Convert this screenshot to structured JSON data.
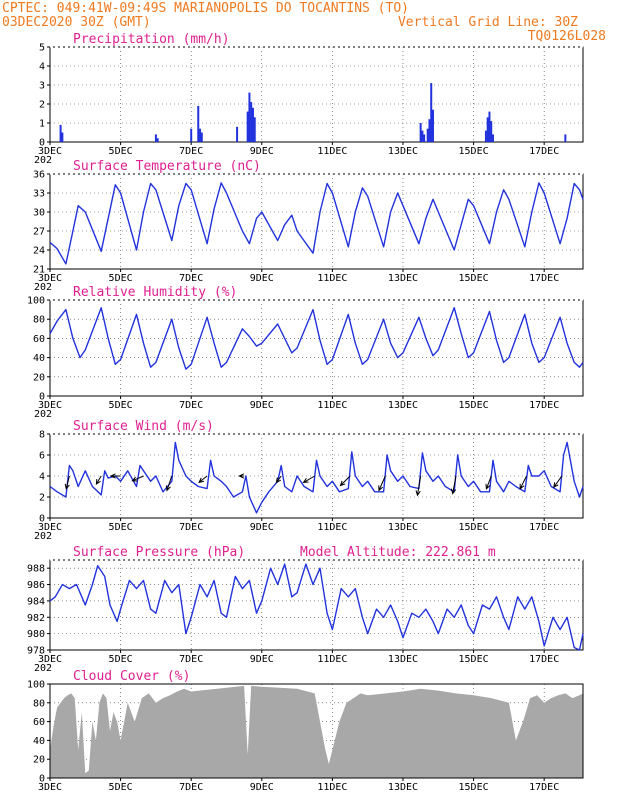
{
  "header": {
    "line1": "CPTEC:  049:41W-09:49S  MARIANOPOLIS DO TOCANTINS (TO)",
    "line2_left": "03DEC2020 30Z (GMT)",
    "line2_right": "Vertical Grid Line: 30Z",
    "line3_right": "TQ0126L028"
  },
  "colors": {
    "header": "#f07a20",
    "title": "#e02090",
    "series": "#2233dd",
    "cloud": "#a8a8a8",
    "wind_arrow": "#000000"
  },
  "x_axis": {
    "labels": [
      "3DEC",
      "5DEC",
      "7DEC",
      "9DEC",
      "11DEC",
      "13DEC",
      "15DEC",
      "17DEC"
    ],
    "label_days": [
      3,
      5,
      7,
      9,
      11,
      13,
      15,
      17
    ],
    "small_label": "202",
    "range_days": [
      3,
      18.1
    ]
  },
  "chart_data": [
    {
      "id": "precip",
      "type": "bar",
      "title": "Precipitation (mm/h)",
      "ylim": [
        0,
        5
      ],
      "yticks": [
        0,
        1,
        2,
        3,
        4,
        5
      ],
      "x": [
        3.3,
        3.35,
        6.0,
        6.05,
        7.0,
        7.2,
        7.25,
        7.3,
        8.3,
        8.6,
        8.65,
        8.7,
        8.75,
        8.8,
        13.5,
        13.55,
        13.6,
        13.7,
        13.75,
        13.8,
        13.85,
        15.35,
        15.4,
        15.45,
        15.5,
        15.55,
        17.6
      ],
      "values": [
        0.9,
        0.5,
        0.4,
        0.2,
        0.7,
        1.9,
        0.7,
        0.5,
        0.8,
        1.6,
        2.6,
        2.1,
        1.8,
        1.3,
        1.0,
        0.6,
        0.4,
        0.7,
        1.2,
        3.1,
        1.7,
        0.6,
        1.3,
        1.6,
        1.1,
        0.4,
        0.4
      ]
    },
    {
      "id": "temp",
      "type": "line",
      "title": "Surface Temperature (nC)",
      "ylim": [
        21,
        36
      ],
      "yticks": [
        21,
        24,
        27,
        30,
        33,
        36
      ],
      "x": [
        3.0,
        3.2,
        3.45,
        3.65,
        3.8,
        4.0,
        4.45,
        4.65,
        4.85,
        5.0,
        5.45,
        5.65,
        5.85,
        6.0,
        6.45,
        6.65,
        6.85,
        7.0,
        7.45,
        7.65,
        7.85,
        8.0,
        8.45,
        8.65,
        8.85,
        9.0,
        9.45,
        9.65,
        9.85,
        10.0,
        10.45,
        10.65,
        10.85,
        11.0,
        11.45,
        11.65,
        11.85,
        12.0,
        12.45,
        12.65,
        12.85,
        13.0,
        13.45,
        13.65,
        13.85,
        14.0,
        14.45,
        14.65,
        14.85,
        15.0,
        15.45,
        15.65,
        15.85,
        16.0,
        16.45,
        16.65,
        16.85,
        17.0,
        17.45,
        17.65,
        17.85,
        18.0,
        18.1
      ],
      "values": [
        25.2,
        24.2,
        21.8,
        27.0,
        31.0,
        30.0,
        23.8,
        29.0,
        34.3,
        33.0,
        24.0,
        30.0,
        34.5,
        33.5,
        25.5,
        31.0,
        34.5,
        33.5,
        25.0,
        30.5,
        34.6,
        33.0,
        27.0,
        25.0,
        29.0,
        30.0,
        25.5,
        28.0,
        29.5,
        27.0,
        23.5,
        30.0,
        34.5,
        33.0,
        24.5,
        30.0,
        33.8,
        32.5,
        24.5,
        30.0,
        33.0,
        31.0,
        25.0,
        29.0,
        32.0,
        30.0,
        24.0,
        28.0,
        32.0,
        31.0,
        25.0,
        30.0,
        33.5,
        32.0,
        24.5,
        30.0,
        34.6,
        33.0,
        25.0,
        29.0,
        34.5,
        33.5,
        32.0
      ]
    },
    {
      "id": "rh",
      "type": "line",
      "title": "Relative Humidity (%)",
      "ylim": [
        0,
        100
      ],
      "yticks": [
        0,
        20,
        40,
        60,
        80,
        100
      ],
      "x": [
        3.0,
        3.2,
        3.45,
        3.65,
        3.85,
        4.0,
        4.45,
        4.65,
        4.85,
        5.0,
        5.45,
        5.65,
        5.85,
        6.0,
        6.45,
        6.65,
        6.85,
        7.0,
        7.45,
        7.65,
        7.85,
        8.0,
        8.45,
        8.65,
        8.85,
        9.0,
        9.45,
        9.65,
        9.85,
        10.0,
        10.45,
        10.65,
        10.85,
        11.0,
        11.45,
        11.65,
        11.85,
        12.0,
        12.45,
        12.65,
        12.85,
        13.0,
        13.45,
        13.65,
        13.85,
        14.0,
        14.45,
        14.65,
        14.85,
        15.0,
        15.45,
        15.65,
        15.85,
        16.0,
        16.45,
        16.65,
        16.85,
        17.0,
        17.45,
        17.65,
        17.85,
        18.0,
        18.1
      ],
      "values": [
        65,
        78,
        90,
        60,
        40,
        48,
        92,
        60,
        33,
        38,
        85,
        55,
        30,
        35,
        80,
        50,
        28,
        33,
        82,
        55,
        30,
        35,
        70,
        62,
        52,
        55,
        75,
        60,
        45,
        50,
        90,
        58,
        33,
        38,
        85,
        55,
        33,
        38,
        80,
        55,
        40,
        45,
        82,
        60,
        42,
        48,
        92,
        65,
        40,
        45,
        88,
        58,
        35,
        40,
        85,
        55,
        35,
        40,
        82,
        55,
        35,
        30,
        35
      ]
    },
    {
      "id": "wind",
      "type": "line",
      "title": "Surface Wind (m/s)",
      "ylim": [
        0,
        8
      ],
      "yticks": [
        0,
        2,
        4,
        6,
        8
      ],
      "x": [
        3.0,
        3.2,
        3.45,
        3.55,
        3.65,
        3.8,
        4.0,
        4.2,
        4.45,
        4.55,
        4.65,
        4.85,
        5.0,
        5.2,
        5.45,
        5.55,
        5.65,
        5.85,
        6.0,
        6.2,
        6.45,
        6.55,
        6.65,
        6.85,
        7.0,
        7.2,
        7.45,
        7.55,
        7.65,
        7.85,
        8.0,
        8.2,
        8.45,
        8.55,
        8.65,
        8.85,
        9.0,
        9.2,
        9.45,
        9.55,
        9.65,
        9.85,
        10.0,
        10.2,
        10.45,
        10.55,
        10.65,
        10.85,
        11.0,
        11.2,
        11.45,
        11.55,
        11.65,
        11.85,
        12.0,
        12.2,
        12.45,
        12.55,
        12.65,
        12.85,
        13.0,
        13.2,
        13.45,
        13.55,
        13.65,
        13.85,
        14.0,
        14.2,
        14.45,
        14.55,
        14.65,
        14.85,
        15.0,
        15.2,
        15.45,
        15.55,
        15.65,
        15.85,
        16.0,
        16.2,
        16.45,
        16.55,
        16.65,
        16.85,
        17.0,
        17.2,
        17.45,
        17.55,
        17.65,
        17.85,
        18.0,
        18.1
      ],
      "values": [
        3.0,
        2.5,
        2.0,
        5.0,
        4.5,
        3.0,
        4.5,
        3.0,
        2.2,
        4.5,
        3.8,
        4.0,
        3.5,
        4.5,
        3.0,
        5.0,
        4.5,
        3.5,
        4.0,
        2.5,
        3.5,
        7.2,
        5.5,
        4.0,
        3.5,
        3.0,
        2.8,
        5.5,
        4.0,
        3.5,
        3.0,
        2.0,
        2.5,
        4.0,
        2.0,
        0.5,
        1.5,
        2.5,
        3.5,
        5.0,
        3.0,
        2.5,
        4.0,
        3.0,
        2.5,
        5.5,
        4.0,
        3.0,
        3.5,
        2.5,
        2.8,
        6.3,
        4.0,
        3.0,
        3.5,
        2.5,
        2.5,
        6.0,
        4.5,
        3.5,
        4.0,
        3.0,
        2.8,
        6.2,
        4.5,
        3.5,
        4.0,
        3.0,
        2.5,
        6.0,
        4.0,
        3.0,
        3.5,
        2.5,
        2.5,
        5.5,
        3.5,
        2.5,
        3.5,
        3.0,
        2.5,
        5.0,
        4.0,
        4.0,
        4.5,
        3.0,
        2.5,
        6.0,
        7.2,
        3.5,
        2.0,
        3.0
      ],
      "vectors": {
        "x": [
          3.55,
          4.45,
          5.0,
          5.65,
          6.45,
          7.45,
          8.5,
          9.55,
          10.5,
          11.5,
          12.5,
          13.5,
          14.5,
          15.5,
          16.5,
          17.5
        ],
        "u": [
          -1.0,
          -1.5,
          -3.0,
          -3.5,
          -1.5,
          -2.5,
          -1.5,
          -1.5,
          -3.5,
          -3.0,
          -2.0,
          -1.0,
          -1.0,
          -1.5,
          -2.0,
          -2.5
        ],
        "v": [
          -4.0,
          -2.5,
          0.0,
          -1.5,
          -4.5,
          -2.0,
          0.0,
          -2.0,
          -2.0,
          -3.0,
          -4.5,
          -6.0,
          -5.5,
          -4.0,
          -4.0,
          -3.5
        ]
      }
    },
    {
      "id": "pressure",
      "type": "line",
      "title": "Surface Pressure (hPa)",
      "annotation": "Model Altitude: 222.861 m",
      "ylim": [
        978,
        989
      ],
      "yticks": [
        978,
        980,
        982,
        984,
        986,
        988
      ],
      "x": [
        3.0,
        3.15,
        3.35,
        3.55,
        3.75,
        4.0,
        4.2,
        4.35,
        4.55,
        4.7,
        4.9,
        5.0,
        5.25,
        5.45,
        5.65,
        5.85,
        6.0,
        6.25,
        6.45,
        6.65,
        6.85,
        7.0,
        7.25,
        7.45,
        7.65,
        7.85,
        8.0,
        8.25,
        8.45,
        8.65,
        8.85,
        9.0,
        9.25,
        9.45,
        9.65,
        9.85,
        10.0,
        10.25,
        10.45,
        10.65,
        10.85,
        11.0,
        11.25,
        11.45,
        11.65,
        11.85,
        12.0,
        12.25,
        12.45,
        12.65,
        12.85,
        13.0,
        13.25,
        13.45,
        13.65,
        13.85,
        14.0,
        14.25,
        14.45,
        14.65,
        14.85,
        15.0,
        15.25,
        15.45,
        15.65,
        15.85,
        16.0,
        16.25,
        16.45,
        16.65,
        16.85,
        17.0,
        17.25,
        17.45,
        17.65,
        17.85,
        18.0,
        18.1
      ],
      "values": [
        984.0,
        984.5,
        986.0,
        985.5,
        986.0,
        983.5,
        986.0,
        988.3,
        987.0,
        983.5,
        981.5,
        983.0,
        986.5,
        985.5,
        986.5,
        983.0,
        982.5,
        986.5,
        985.0,
        986.0,
        980.0,
        982.0,
        986.0,
        984.5,
        986.5,
        982.5,
        982.0,
        987.0,
        985.5,
        986.5,
        982.5,
        984.0,
        988.0,
        986.0,
        988.5,
        984.5,
        985.0,
        988.5,
        986.0,
        988.0,
        982.5,
        980.5,
        985.5,
        984.5,
        985.5,
        982.0,
        980.0,
        983.0,
        982.0,
        983.5,
        981.5,
        979.5,
        982.5,
        982.0,
        983.0,
        981.5,
        980.0,
        983.0,
        982.0,
        983.5,
        981.0,
        980.0,
        983.5,
        983.0,
        984.5,
        982.0,
        980.5,
        984.5,
        983.0,
        984.5,
        981.5,
        978.5,
        982.0,
        980.5,
        982.0,
        978.3,
        978.0,
        980.0
      ]
    },
    {
      "id": "cloud",
      "type": "area",
      "title": "Cloud Cover (%)",
      "ylim": [
        0,
        100
      ],
      "yticks": [
        0,
        20,
        40,
        60,
        80,
        100
      ],
      "x": [
        3.0,
        3.1,
        3.2,
        3.3,
        3.4,
        3.5,
        3.6,
        3.7,
        3.8,
        3.9,
        4.0,
        4.1,
        4.2,
        4.3,
        4.4,
        4.5,
        4.6,
        4.7,
        4.8,
        4.9,
        5.0,
        5.2,
        5.4,
        5.6,
        5.8,
        6.0,
        6.2,
        6.4,
        6.6,
        6.8,
        7.0,
        7.5,
        8.0,
        8.5,
        8.6,
        8.7,
        9.0,
        9.5,
        10.0,
        10.5,
        10.8,
        10.9,
        11.0,
        11.2,
        11.4,
        11.6,
        11.8,
        12.0,
        12.5,
        13.0,
        13.5,
        14.0,
        14.5,
        15.0,
        15.5,
        16.0,
        16.2,
        16.4,
        16.6,
        16.8,
        17.0,
        17.2,
        17.4,
        17.6,
        17.8,
        18.0,
        18.1
      ],
      "values": [
        30,
        55,
        75,
        80,
        85,
        88,
        90,
        85,
        30,
        70,
        5,
        8,
        60,
        40,
        80,
        90,
        85,
        50,
        70,
        60,
        40,
        80,
        60,
        85,
        90,
        80,
        85,
        88,
        92,
        95,
        92,
        94,
        96,
        98,
        25,
        98,
        97,
        96,
        95,
        90,
        30,
        15,
        30,
        60,
        80,
        85,
        90,
        88,
        90,
        92,
        95,
        93,
        90,
        88,
        85,
        80,
        40,
        60,
        85,
        88,
        80,
        85,
        88,
        90,
        85,
        88,
        90
      ]
    }
  ]
}
